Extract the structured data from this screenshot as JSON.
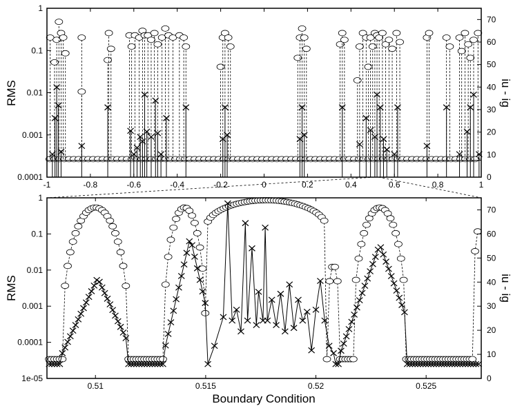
{
  "chart_data": [
    {
      "type": "line",
      "panel": "top",
      "xlabel": "",
      "ylabel": "RMS",
      "y2label": "iu - ig",
      "xlim": [
        -1,
        1
      ],
      "ylim": [
        0.0001,
        1
      ],
      "y2lim": [
        0,
        75
      ],
      "yscale": "log",
      "grid": false,
      "x_ticks": [
        "-1",
        "-0.8",
        "-0.6",
        "-0.4",
        "-0.2",
        "0",
        "0.2",
        "0.4",
        "0.6",
        "0.8",
        "1"
      ],
      "y_ticks": [
        "0.0001",
        "0.001",
        "0.01",
        "0.1",
        "1"
      ],
      "y2_ticks": [
        "0",
        "10",
        "20",
        "30",
        "40",
        "50",
        "60",
        "70"
      ],
      "baseline": {
        "iu_ig": 8,
        "rms": 0.00025
      },
      "series": [
        {
          "marker": "circle",
          "line": "dashed",
          "axis": "right",
          "peaks": [
            {
              "x": -0.985,
              "v": 62
            },
            {
              "x": -0.965,
              "v": 51
            },
            {
              "x": -0.955,
              "v": 61
            },
            {
              "x": -0.945,
              "v": 69
            },
            {
              "x": -0.935,
              "v": 64
            },
            {
              "x": -0.925,
              "v": 62
            },
            {
              "x": -0.915,
              "v": 55
            },
            {
              "x": -0.84,
              "v": 62
            },
            {
              "x": -0.84,
              "v": 38
            },
            {
              "x": -0.72,
              "v": 52
            },
            {
              "x": -0.715,
              "v": 64
            },
            {
              "x": -0.705,
              "v": 57
            },
            {
              "x": -0.62,
              "v": 63
            },
            {
              "x": -0.61,
              "v": 58
            },
            {
              "x": -0.595,
              "v": 63
            },
            {
              "x": -0.575,
              "v": 62
            },
            {
              "x": -0.56,
              "v": 65
            },
            {
              "x": -0.55,
              "v": 63
            },
            {
              "x": -0.535,
              "v": 63
            },
            {
              "x": -0.52,
              "v": 61
            },
            {
              "x": -0.505,
              "v": 64
            },
            {
              "x": -0.49,
              "v": 59
            },
            {
              "x": -0.47,
              "v": 62
            },
            {
              "x": -0.455,
              "v": 66
            },
            {
              "x": -0.44,
              "v": 63
            },
            {
              "x": -0.42,
              "v": 62
            },
            {
              "x": -0.39,
              "v": 63
            },
            {
              "x": -0.37,
              "v": 62
            },
            {
              "x": -0.36,
              "v": 58
            },
            {
              "x": -0.2,
              "v": 49
            },
            {
              "x": -0.19,
              "v": 62
            },
            {
              "x": -0.18,
              "v": 64
            },
            {
              "x": -0.165,
              "v": 62
            },
            {
              "x": -0.155,
              "v": 58
            },
            {
              "x": 0.155,
              "v": 53
            },
            {
              "x": 0.165,
              "v": 62
            },
            {
              "x": 0.175,
              "v": 66
            },
            {
              "x": 0.185,
              "v": 62
            },
            {
              "x": 0.195,
              "v": 57
            },
            {
              "x": 0.35,
              "v": 59
            },
            {
              "x": 0.36,
              "v": 64
            },
            {
              "x": 0.37,
              "v": 61
            },
            {
              "x": 0.43,
              "v": 43
            },
            {
              "x": 0.44,
              "v": 58
            },
            {
              "x": 0.455,
              "v": 64
            },
            {
              "x": 0.47,
              "v": 62
            },
            {
              "x": 0.48,
              "v": 49
            },
            {
              "x": 0.49,
              "v": 62
            },
            {
              "x": 0.5,
              "v": 58
            },
            {
              "x": 0.51,
              "v": 64
            },
            {
              "x": 0.52,
              "v": 63
            },
            {
              "x": 0.53,
              "v": 62
            },
            {
              "x": 0.545,
              "v": 64
            },
            {
              "x": 0.56,
              "v": 59
            },
            {
              "x": 0.575,
              "v": 61
            },
            {
              "x": 0.59,
              "v": 57
            },
            {
              "x": 0.61,
              "v": 64
            },
            {
              "x": 0.625,
              "v": 60
            },
            {
              "x": 0.75,
              "v": 62
            },
            {
              "x": 0.76,
              "v": 64
            },
            {
              "x": 0.84,
              "v": 62
            },
            {
              "x": 0.855,
              "v": 58
            },
            {
              "x": 0.9,
              "v": 62
            },
            {
              "x": 0.91,
              "v": 56
            },
            {
              "x": 0.925,
              "v": 64
            },
            {
              "x": 0.94,
              "v": 59
            },
            {
              "x": 0.95,
              "v": 53
            },
            {
              "x": 0.965,
              "v": 61
            },
            {
              "x": 0.985,
              "v": 64
            }
          ]
        },
        {
          "marker": "x",
          "line": "solid",
          "axis": "left",
          "peaks": [
            {
              "x": -0.975,
              "v": 0.00035
            },
            {
              "x": -0.963,
              "v": 0.0025
            },
            {
              "x": -0.955,
              "v": 0.0135
            },
            {
              "x": -0.947,
              "v": 0.005
            },
            {
              "x": -0.935,
              "v": 0.0004
            },
            {
              "x": -0.84,
              "v": 0.00055
            },
            {
              "x": -0.72,
              "v": 0.0045
            },
            {
              "x": -0.615,
              "v": 0.00125
            },
            {
              "x": -0.6,
              "v": 0.00035
            },
            {
              "x": -0.585,
              "v": 0.0005
            },
            {
              "x": -0.57,
              "v": 0.0009
            },
            {
              "x": -0.56,
              "v": 0.0007
            },
            {
              "x": -0.55,
              "v": 0.009
            },
            {
              "x": -0.54,
              "v": 0.0012
            },
            {
              "x": -0.52,
              "v": 0.0009
            },
            {
              "x": -0.5,
              "v": 0.0065
            },
            {
              "x": -0.49,
              "v": 0.0011
            },
            {
              "x": -0.475,
              "v": 0.00035
            },
            {
              "x": -0.45,
              "v": 0.0025
            },
            {
              "x": -0.36,
              "v": 0.0045
            },
            {
              "x": -0.19,
              "v": 0.0008
            },
            {
              "x": -0.18,
              "v": 0.0045
            },
            {
              "x": -0.17,
              "v": 0.001
            },
            {
              "x": 0.165,
              "v": 0.0008
            },
            {
              "x": 0.175,
              "v": 0.0045
            },
            {
              "x": 0.185,
              "v": 0.001
            },
            {
              "x": 0.36,
              "v": 0.0045
            },
            {
              "x": 0.44,
              "v": 0.0006
            },
            {
              "x": 0.47,
              "v": 0.0025
            },
            {
              "x": 0.49,
              "v": 0.0013
            },
            {
              "x": 0.51,
              "v": 0.0009
            },
            {
              "x": 0.52,
              "v": 0.009
            },
            {
              "x": 0.535,
              "v": 0.0045
            },
            {
              "x": 0.55,
              "v": 0.0008
            },
            {
              "x": 0.565,
              "v": 0.00045
            },
            {
              "x": 0.6,
              "v": 0.00035
            },
            {
              "x": 0.615,
              "v": 0.0045
            },
            {
              "x": 0.75,
              "v": 0.00055
            },
            {
              "x": 0.84,
              "v": 0.0045
            },
            {
              "x": 0.9,
              "v": 0.00035
            },
            {
              "x": 0.935,
              "v": 0.0012
            },
            {
              "x": 0.95,
              "v": 0.0045
            },
            {
              "x": 0.965,
              "v": 0.009
            },
            {
              "x": 0.99,
              "v": 0.00035
            }
          ]
        }
      ],
      "zoom_window": [
        0.5078,
        0.5275
      ]
    },
    {
      "type": "line",
      "panel": "bottom",
      "xlabel": "Boundary Condition",
      "ylabel": "RMS",
      "y2label": "iu - ig",
      "xlim": [
        0.5078,
        0.5275
      ],
      "ylim": [
        1e-05,
        1
      ],
      "y2lim": [
        0,
        75
      ],
      "yscale": "log",
      "grid": false,
      "x_ticks": [
        "0.51",
        "0.515",
        "0.52",
        "0.525"
      ],
      "y_ticks": [
        "1e-05",
        "0.0001",
        "0.001",
        "0.01",
        "0.1",
        "1"
      ],
      "y2_ticks": [
        "0",
        "10",
        "20",
        "30",
        "40",
        "50",
        "60",
        "70"
      ],
      "baseline": {
        "iu_ig": 8,
        "rms": 2.5e-05
      },
      "series": [
        {
          "marker": "circle",
          "line": "dashed",
          "axis": "right",
          "bumps": [
            {
              "x0": 0.5085,
              "x1": 0.5115,
              "peak": 71,
              "base": 8
            },
            {
              "x0": 0.5131,
              "x1": 0.515,
              "peak": 71,
              "base": 8
            },
            {
              "x0": 0.515,
              "x1": 0.5205,
              "peak": 74,
              "base": 60
            },
            {
              "x0": 0.5205,
              "x1": 0.5211,
              "peak": 47,
              "base": 8
            },
            {
              "x0": 0.5217,
              "x1": 0.5241,
              "peak": 71,
              "base": 8
            },
            {
              "x0": 0.5271,
              "x1": 0.5277,
              "peak": 62,
              "base": 8
            }
          ]
        },
        {
          "marker": "x",
          "line": "solid",
          "axis": "left",
          "bumps": [
            {
              "x0": 0.5085,
              "x1": 0.5115,
              "peak": 0.006,
              "center": 0.5101
            },
            {
              "x0": 0.5131,
              "x1": 0.5151,
              "peak": 0.08,
              "center": 0.5143
            },
            {
              "x0": 0.5211,
              "x1": 0.5241,
              "peak": 0.05,
              "center": 0.5229
            }
          ],
          "spikes": [
            {
              "x": 0.5154,
              "v": 8e-05
            },
            {
              "x": 0.5158,
              "v": 0.0005
            },
            {
              "x": 0.516,
              "v": 0.7
            },
            {
              "x": 0.5162,
              "v": 0.0004
            },
            {
              "x": 0.5164,
              "v": 0.0008
            },
            {
              "x": 0.5166,
              "v": 0.0002
            },
            {
              "x": 0.5168,
              "v": 0.2
            },
            {
              "x": 0.5169,
              "v": 0.0004
            },
            {
              "x": 0.5171,
              "v": 0.04
            },
            {
              "x": 0.5173,
              "v": 0.0003
            },
            {
              "x": 0.5174,
              "v": 0.0025
            },
            {
              "x": 0.5176,
              "v": 0.0004
            },
            {
              "x": 0.5177,
              "v": 0.15
            },
            {
              "x": 0.5178,
              "v": 0.0004
            },
            {
              "x": 0.518,
              "v": 0.0015
            },
            {
              "x": 0.5182,
              "v": 0.0003
            },
            {
              "x": 0.5184,
              "v": 0.0022
            },
            {
              "x": 0.5186,
              "v": 0.0002
            },
            {
              "x": 0.5188,
              "v": 0.004
            },
            {
              "x": 0.519,
              "v": 0.00025
            },
            {
              "x": 0.5192,
              "v": 0.0015
            },
            {
              "x": 0.5194,
              "v": 0.0004
            },
            {
              "x": 0.5196,
              "v": 0.0007
            },
            {
              "x": 0.5198,
              "v": 6e-05
            },
            {
              "x": 0.52,
              "v": 0.0008
            },
            {
              "x": 0.5202,
              "v": 0.005
            },
            {
              "x": 0.5204,
              "v": 0.0004
            },
            {
              "x": 0.5206,
              "v": 8e-05
            },
            {
              "x": 0.5208,
              "v": 5e-05
            }
          ]
        }
      ]
    }
  ]
}
